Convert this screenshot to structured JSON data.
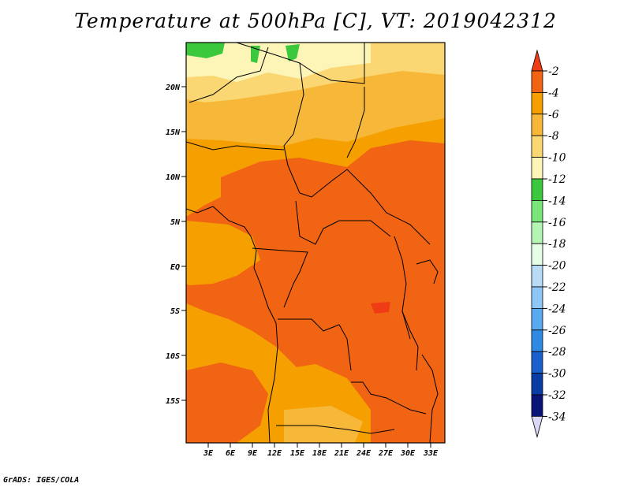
{
  "title": "Temperature at 500hPa [C], VT: 2019042312",
  "credit": "GrADS: IGES/COLA",
  "map": {
    "lat_labels": [
      "20N",
      "15N",
      "10N",
      "5N",
      "EQ",
      "5S",
      "10S",
      "15S"
    ],
    "lon_labels": [
      "3E",
      "6E",
      "9E",
      "12E",
      "15E",
      "18E",
      "21E",
      "24E",
      "27E",
      "30E",
      "33E"
    ]
  },
  "colorbar": {
    "labels": [
      "-2",
      "-4",
      "-6",
      "-8",
      "-10",
      "-12",
      "-14",
      "-16",
      "-18",
      "-20",
      "-22",
      "-24",
      "-26",
      "-28",
      "-30",
      "-32",
      "-34"
    ],
    "colors": [
      "#f03c14",
      "#f06414",
      "#f5a000",
      "#f7b83a",
      "#fad772",
      "#fdf5b8",
      "#3cc83c",
      "#78e678",
      "#b4f5b4",
      "#e6fde6",
      "#b8dcf8",
      "#8ec6f5",
      "#5aaaf0",
      "#2f8ae6",
      "#1a60cc",
      "#0a3ca6",
      "#0a1478",
      "#d8d8f5"
    ]
  }
}
